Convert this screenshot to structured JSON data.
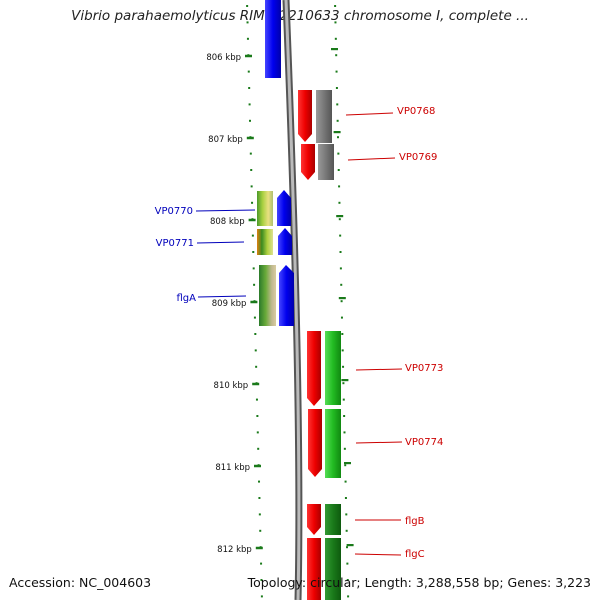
{
  "title": "Vibrio parahaemolyticus RIMD 2210633 chromosome I, complete ...",
  "footer": {
    "accession": "Accession: NC_004603",
    "topology": "Topology: circular; Length: 3,288,558 bp; Genes: 3,223"
  },
  "colors": {
    "forward_label": "#cc0000",
    "reverse_label": "#0000bb",
    "tick": "#1a7a1a",
    "backbone": "#888888"
  },
  "kbp_ticks": [
    {
      "kbp": 806,
      "label": "806 kbp"
    },
    {
      "kbp": 807,
      "label": "807 kbp"
    },
    {
      "kbp": 808,
      "label": "808 kbp"
    },
    {
      "kbp": 809,
      "label": "809 kbp"
    },
    {
      "kbp": 810,
      "label": "810 kbp"
    },
    {
      "kbp": 811,
      "label": "811 kbp"
    },
    {
      "kbp": 812,
      "label": "812 kbp"
    }
  ],
  "gene_labels": [
    {
      "name": "VP0768",
      "strand": "forward"
    },
    {
      "name": "VP0769",
      "strand": "forward"
    },
    {
      "name": "VP0770",
      "strand": "reverse"
    },
    {
      "name": "VP0771",
      "strand": "reverse"
    },
    {
      "name": "flgA",
      "strand": "reverse"
    },
    {
      "name": "VP0773",
      "strand": "forward"
    },
    {
      "name": "VP0774",
      "strand": "forward"
    },
    {
      "name": "flgB",
      "strand": "forward"
    },
    {
      "name": "flgC",
      "strand": "forward"
    }
  ]
}
